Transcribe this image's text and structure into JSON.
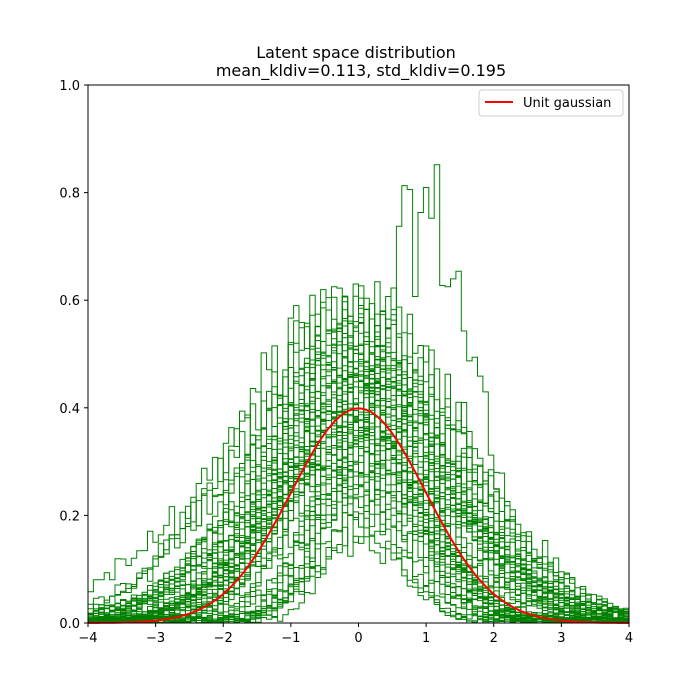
{
  "chart_data": {
    "type": "histogram",
    "title": "Latent space distribution",
    "subtitle": "mean_kldiv=0.113, std_kldiv=0.195",
    "xlabel": "",
    "ylabel": "",
    "xlim": [
      -4,
      4
    ],
    "ylim": [
      0,
      1.0
    ],
    "x_ticks": [
      -4,
      -3,
      -2,
      -1,
      0,
      1,
      2,
      3,
      4
    ],
    "y_ticks": [
      0.0,
      0.2,
      0.4,
      0.6,
      0.8,
      1.0
    ],
    "x_tick_labels": [
      "−4",
      "−3",
      "−2",
      "−1",
      "0",
      "1",
      "2",
      "3",
      "4"
    ],
    "y_tick_labels": [
      "0.0",
      "0.2",
      "0.4",
      "0.6",
      "0.8",
      "1.0"
    ],
    "grid": false,
    "legend": {
      "placement": "top-right",
      "entries": [
        "Unit gaussian"
      ]
    },
    "colors": {
      "histograms": "#008000",
      "reference_curve": "#ff0000"
    },
    "histogram_series": {
      "description_visible": "many overlapping step histograms of latent dimensions",
      "approx_count": 60,
      "peak_max": 0.86,
      "peak_location": 1.0
    },
    "series": [
      {
        "name": "Unit gaussian",
        "type": "line",
        "x": [
          -4.0,
          -3.5,
          -3.0,
          -2.5,
          -2.0,
          -1.5,
          -1.0,
          -0.5,
          0.0,
          0.5,
          1.0,
          1.5,
          2.0,
          2.5,
          3.0,
          3.5,
          4.0
        ],
        "values": [
          0.0001,
          0.0009,
          0.0044,
          0.0175,
          0.054,
          0.1295,
          0.242,
          0.3521,
          0.3989,
          0.3521,
          0.242,
          0.1295,
          0.054,
          0.0175,
          0.0044,
          0.0009,
          0.0001
        ]
      }
    ]
  }
}
